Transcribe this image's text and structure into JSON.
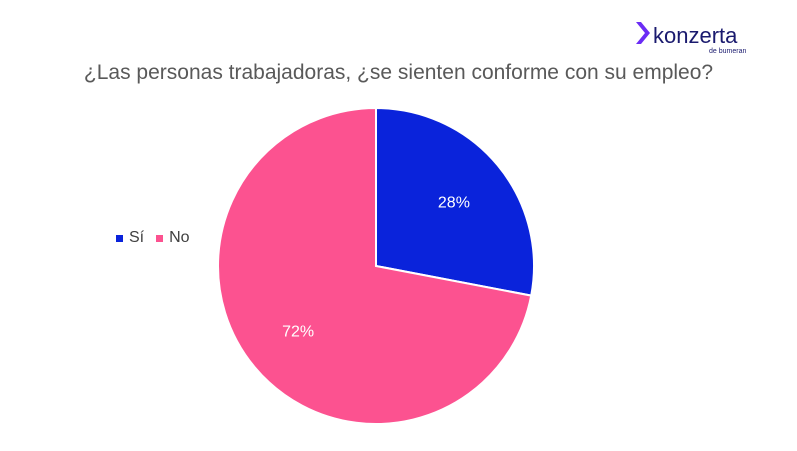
{
  "brand": {
    "name": "konzerta",
    "tagline": "de bumeran",
    "colors": {
      "mark": "#6b2cf5",
      "text": "#1a1a6e"
    }
  },
  "chart_data": {
    "type": "pie",
    "title": "¿Las personas trabajadoras, ¿se sienten conforme con su empleo?",
    "slices": [
      {
        "label": "Sí",
        "value": 28,
        "display": "28%",
        "color": "#0a23db"
      },
      {
        "label": "No",
        "value": 72,
        "display": "72%",
        "color": "#fc5290"
      }
    ],
    "legend_position": "left",
    "start_angle": "12 o'clock",
    "direction": "clockwise"
  }
}
